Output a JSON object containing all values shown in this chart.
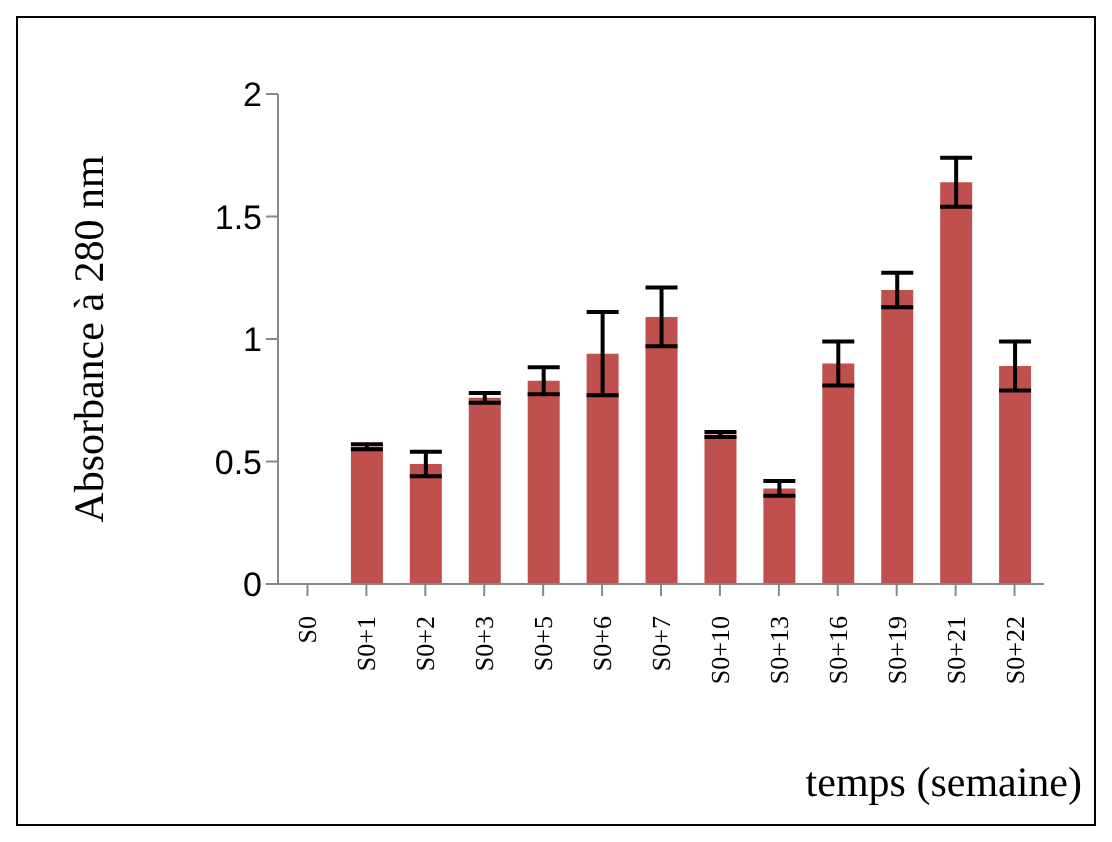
{
  "chart_data": {
    "type": "bar",
    "ylabel": "Absorbance à 280 nm",
    "xlabel": "temps (semaine)",
    "categories": [
      "S0",
      "S0+1",
      "S0+2",
      "S0+3",
      "S0+5",
      "S0+6",
      "S0+7",
      "S0+10",
      "S0+13",
      "S0+16",
      "S0+19",
      "S0+21",
      "S0+22"
    ],
    "values": [
      0,
      0.56,
      0.49,
      0.76,
      0.83,
      0.94,
      1.09,
      0.61,
      0.39,
      0.9,
      1.2,
      1.64,
      0.89
    ],
    "errors": [
      null,
      0.01,
      0.05,
      0.02,
      0.055,
      0.17,
      0.12,
      0.01,
      0.03,
      0.09,
      0.07,
      0.1,
      0.1
    ],
    "color": "#c0504d",
    "ylim": [
      0,
      2
    ],
    "yticks": [
      0,
      0.5,
      1,
      1.5,
      2
    ],
    "grid": false,
    "legend": false
  }
}
